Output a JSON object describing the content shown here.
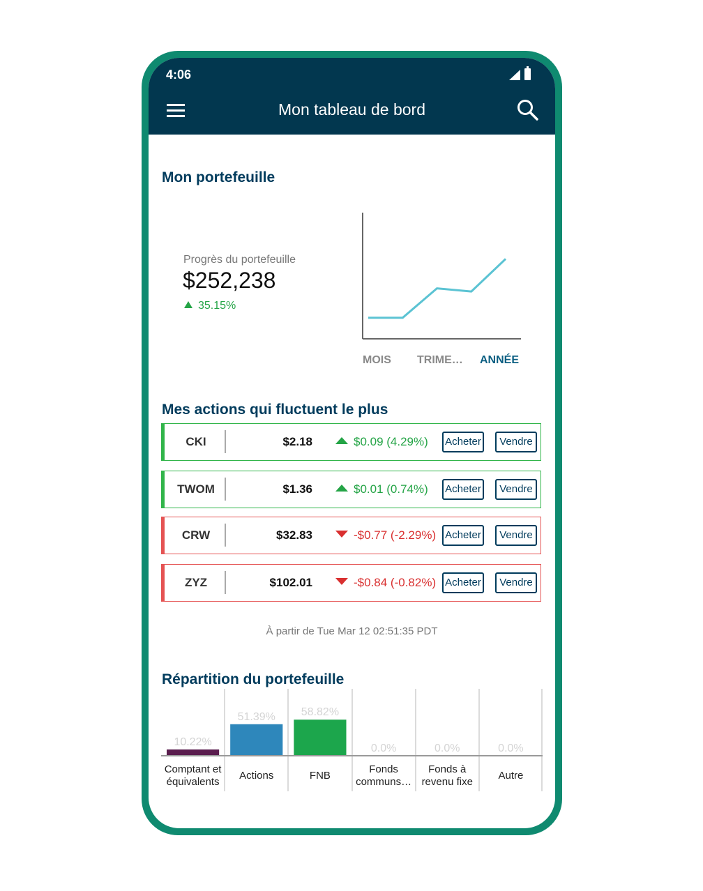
{
  "status_bar": {
    "time": "4:06"
  },
  "app_bar": {
    "title": "Mon tableau de bord"
  },
  "portfolio": {
    "heading": "Mon portefeuille",
    "progress_label": "Progrès du portefeuille",
    "value": "$252,238",
    "change": "35.15%",
    "tabs": [
      {
        "label": "MOIS",
        "active": false
      },
      {
        "label": "TRIME…",
        "active": false
      },
      {
        "label": "ANNÉE",
        "active": true
      }
    ],
    "line_color": "#5bc3d3",
    "chart_data": {
      "type": "line",
      "values": [
        0,
        0,
        0.28,
        0.25,
        0.56
      ],
      "ylim": [
        -0.2,
        1
      ],
      "title": "",
      "xlabel": "",
      "ylabel": ""
    }
  },
  "movers": {
    "heading": "Mes actions qui fluctuent le plus",
    "buy_label": "Acheter",
    "sell_label": "Vendre",
    "rows": [
      {
        "symbol": "CKI",
        "price": "$2.18",
        "change": "$0.09 (4.29%)",
        "direction": "up"
      },
      {
        "symbol": "TWOM",
        "price": "$1.36",
        "change": "$0.01 (0.74%)",
        "direction": "up"
      },
      {
        "symbol": "CRW",
        "price": "$32.83",
        "change": "-$0.77 (-2.29%)",
        "direction": "down"
      },
      {
        "symbol": "ZYZ",
        "price": "$102.01",
        "change": "-$0.84 (-0.82%)",
        "direction": "down"
      }
    ],
    "timestamp": "À partir de Tue Mar 12 02:51:35 PDT"
  },
  "allocation": {
    "heading": "Répartition du portefeuille",
    "chart_data": {
      "type": "bar",
      "categories": [
        [
          "Comptant et",
          "équivalents"
        ],
        [
          "Actions"
        ],
        [
          "FNB"
        ],
        [
          "Fonds",
          "communs…"
        ],
        [
          "Fonds à",
          "revenu fixe"
        ],
        [
          "Autre"
        ]
      ],
      "values": [
        10.22,
        51.39,
        58.82,
        0.0,
        0.0,
        0.0
      ],
      "labels": [
        "10.22%",
        "51.39%",
        "58.82%",
        "0.0%",
        "0.0%",
        "0.0%"
      ],
      "colors": [
        "#5a1d4e",
        "#2e87bb",
        "#1ca64c",
        "#cccccc",
        "#cccccc",
        "#cccccc"
      ],
      "ylim": [
        0,
        100
      ],
      "title": "",
      "xlabel": "",
      "ylabel": ""
    }
  }
}
